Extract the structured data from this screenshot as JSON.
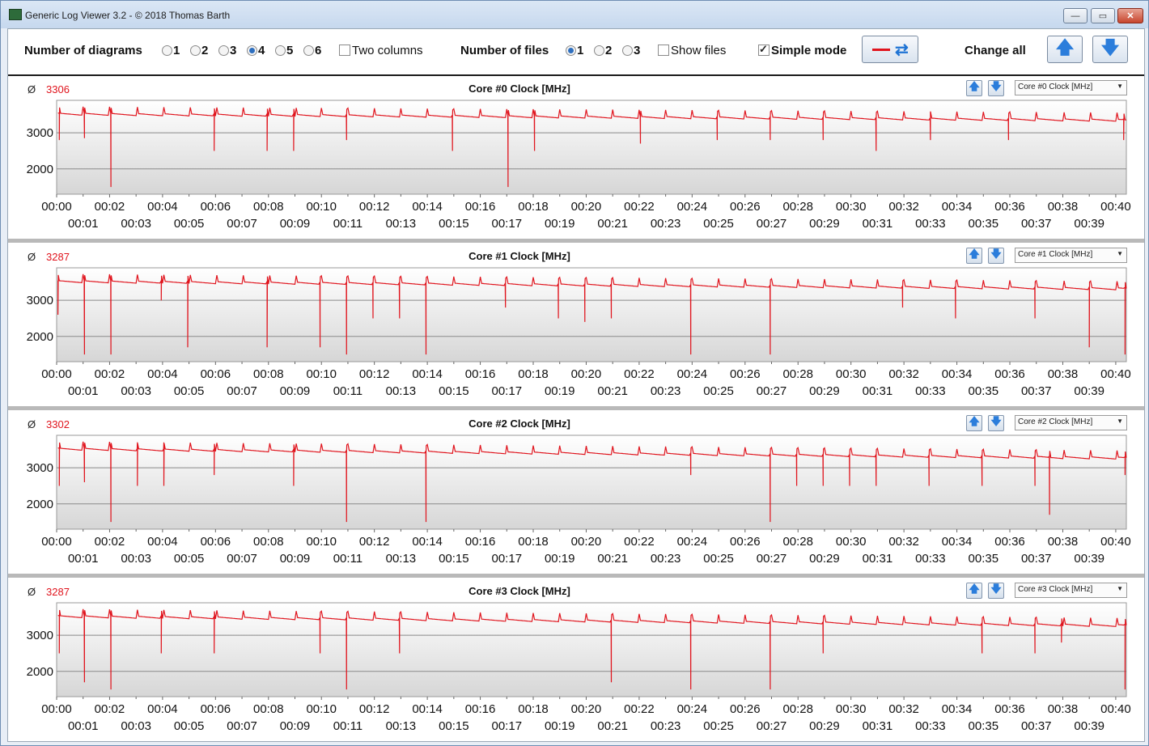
{
  "window": {
    "title": "Generic Log Viewer 3.2 - © 2018 Thomas Barth",
    "minimize_glyph": "—",
    "maximize_glyph": "▭",
    "close_glyph": "✕"
  },
  "toolbar": {
    "num_diagrams_label": "Number of diagrams",
    "diagram_options": [
      "1",
      "2",
      "3",
      "4",
      "5",
      "6"
    ],
    "diagrams_selected": "4",
    "two_columns_label": "Two columns",
    "two_columns_checked": false,
    "num_files_label": "Number of files",
    "file_options": [
      "1",
      "2",
      "3"
    ],
    "files_selected": "1",
    "show_files_label": "Show files",
    "show_files_checked": false,
    "simple_mode_label": "Simple mode",
    "simple_mode_checked": true,
    "change_all_label": "Change all",
    "up_icon": "up-arrow-icon",
    "down_icon": "down-arrow-icon"
  },
  "panels": [
    {
      "avg_symbol": "Ø",
      "avg": "3306",
      "title": "Core #0 Clock [MHz]",
      "combo": "Core #0 Clock [MHz]"
    },
    {
      "avg_symbol": "Ø",
      "avg": "3287",
      "title": "Core #1 Clock [MHz]",
      "combo": "Core #1 Clock [MHz]"
    },
    {
      "avg_symbol": "Ø",
      "avg": "3302",
      "title": "Core #2 Clock [MHz]",
      "combo": "Core #2 Clock [MHz]"
    },
    {
      "avg_symbol": "Ø",
      "avg": "3287",
      "title": "Core #3 Clock [MHz]",
      "combo": "Core #3 Clock [MHz]"
    }
  ],
  "colors": {
    "series": "#e0141d",
    "average": "#e0141d"
  },
  "chart_data": [
    {
      "type": "line",
      "title": "Core #0 Clock [MHz]",
      "y_ticks": [
        "3000",
        "2000"
      ],
      "x_ticks_row1": [
        "00:00",
        "00:02",
        "00:04",
        "00:06",
        "00:08",
        "00:10",
        "00:12",
        "00:14",
        "00:16",
        "00:18",
        "00:20",
        "00:22",
        "00:24",
        "00:26",
        "00:28",
        "00:30",
        "00:32",
        "00:34",
        "00:36",
        "00:38",
        "00:40"
      ],
      "x_ticks_row2": [
        "00:01",
        "00:03",
        "00:05",
        "00:07",
        "00:09",
        "00:11",
        "00:13",
        "00:15",
        "00:17",
        "00:19",
        "00:21",
        "00:23",
        "00:25",
        "00:27",
        "00:29",
        "00:31",
        "00:33",
        "00:35",
        "00:37",
        "00:39"
      ],
      "x_range_min": [
        0,
        40.4
      ],
      "ylim": [
        1300,
        3900
      ],
      "baseline_start": 3550,
      "baseline_end": 3380,
      "spike_period_min": 1.0,
      "dips": [
        [
          0.1,
          2800
        ],
        [
          1.05,
          2850
        ],
        [
          2.05,
          1500
        ],
        [
          5.95,
          2500
        ],
        [
          7.95,
          2500
        ],
        [
          8.95,
          2500
        ],
        [
          10.95,
          2800
        ],
        [
          14.95,
          2500
        ],
        [
          17.05,
          1500
        ],
        [
          18.05,
          2500
        ],
        [
          22.05,
          2700
        ],
        [
          24.95,
          2800
        ],
        [
          26.95,
          2800
        ],
        [
          28.95,
          2800
        ],
        [
          30.95,
          2500
        ],
        [
          33.0,
          2800
        ],
        [
          35.95,
          2800
        ],
        [
          40.3,
          2800
        ]
      ]
    },
    {
      "type": "line",
      "title": "Core #1 Clock [MHz]",
      "y_ticks": [
        "3000",
        "2000"
      ],
      "x_ticks_row1": [
        "00:00",
        "00:02",
        "00:04",
        "00:06",
        "00:08",
        "00:10",
        "00:12",
        "00:14",
        "00:16",
        "00:18",
        "00:20",
        "00:22",
        "00:24",
        "00:26",
        "00:28",
        "00:30",
        "00:32",
        "00:34",
        "00:36",
        "00:38",
        "00:40"
      ],
      "x_ticks_row2": [
        "00:01",
        "00:03",
        "00:05",
        "00:07",
        "00:09",
        "00:11",
        "00:13",
        "00:15",
        "00:17",
        "00:19",
        "00:21",
        "00:23",
        "00:25",
        "00:27",
        "00:29",
        "00:31",
        "00:33",
        "00:35",
        "00:37",
        "00:39"
      ],
      "x_range_min": [
        0,
        40.4
      ],
      "ylim": [
        1300,
        3900
      ],
      "baseline_start": 3550,
      "baseline_end": 3350,
      "spike_period_min": 1.0,
      "dips": [
        [
          0.05,
          2600
        ],
        [
          1.05,
          1500
        ],
        [
          2.05,
          1500
        ],
        [
          3.95,
          3000
        ],
        [
          4.95,
          1700
        ],
        [
          7.95,
          1700
        ],
        [
          9.95,
          1700
        ],
        [
          10.95,
          1500
        ],
        [
          11.95,
          2500
        ],
        [
          12.95,
          2500
        ],
        [
          13.95,
          1500
        ],
        [
          16.95,
          2800
        ],
        [
          18.95,
          2500
        ],
        [
          19.95,
          2400
        ],
        [
          20.95,
          2500
        ],
        [
          23.95,
          1500
        ],
        [
          26.95,
          1500
        ],
        [
          31.95,
          2800
        ],
        [
          33.95,
          2500
        ],
        [
          36.95,
          2500
        ],
        [
          39.0,
          1700
        ],
        [
          40.35,
          1500
        ]
      ]
    },
    {
      "type": "line",
      "title": "Core #2 Clock [MHz]",
      "y_ticks": [
        "3000",
        "2000"
      ],
      "x_ticks_row1": [
        "00:00",
        "00:02",
        "00:04",
        "00:06",
        "00:08",
        "00:10",
        "00:12",
        "00:14",
        "00:16",
        "00:18",
        "00:20",
        "00:22",
        "00:24",
        "00:26",
        "00:28",
        "00:30",
        "00:32",
        "00:34",
        "00:36",
        "00:38",
        "00:40"
      ],
      "x_ticks_row2": [
        "00:01",
        "00:03",
        "00:05",
        "00:07",
        "00:09",
        "00:11",
        "00:13",
        "00:15",
        "00:17",
        "00:19",
        "00:21",
        "00:23",
        "00:25",
        "00:27",
        "00:29",
        "00:31",
        "00:33",
        "00:35",
        "00:37",
        "00:39"
      ],
      "x_range_min": [
        0,
        40.4
      ],
      "ylim": [
        1300,
        3900
      ],
      "baseline_start": 3550,
      "baseline_end": 3300,
      "spike_period_min": 1.0,
      "dips": [
        [
          0.1,
          2500
        ],
        [
          1.05,
          2600
        ],
        [
          2.05,
          1500
        ],
        [
          3.05,
          2500
        ],
        [
          4.05,
          2500
        ],
        [
          5.95,
          2800
        ],
        [
          8.95,
          2500
        ],
        [
          10.95,
          1500
        ],
        [
          13.95,
          1500
        ],
        [
          23.95,
          2800
        ],
        [
          26.95,
          1500
        ],
        [
          27.95,
          2500
        ],
        [
          28.95,
          2500
        ],
        [
          29.95,
          2500
        ],
        [
          30.95,
          2500
        ],
        [
          32.95,
          2500
        ],
        [
          34.95,
          2500
        ],
        [
          36.95,
          2500
        ],
        [
          37.5,
          1700
        ],
        [
          40.35,
          2800
        ]
      ]
    },
    {
      "type": "line",
      "title": "Core #3 Clock [MHz]",
      "y_ticks": [
        "3000",
        "2000"
      ],
      "x_ticks_row1": [
        "00:00",
        "00:02",
        "00:04",
        "00:06",
        "00:08",
        "00:10",
        "00:12",
        "00:14",
        "00:16",
        "00:18",
        "00:20",
        "00:22",
        "00:24",
        "00:26",
        "00:28",
        "00:30",
        "00:32",
        "00:34",
        "00:36",
        "00:38",
        "00:40"
      ],
      "x_ticks_row2": [
        "00:01",
        "00:03",
        "00:05",
        "00:07",
        "00:09",
        "00:11",
        "00:13",
        "00:15",
        "00:17",
        "00:19",
        "00:21",
        "00:23",
        "00:25",
        "00:27",
        "00:29",
        "00:31",
        "00:33",
        "00:35",
        "00:37",
        "00:39"
      ],
      "x_range_min": [
        0,
        40.4
      ],
      "ylim": [
        1300,
        3900
      ],
      "baseline_start": 3550,
      "baseline_end": 3300,
      "spike_period_min": 1.0,
      "dips": [
        [
          0.1,
          2500
        ],
        [
          1.05,
          1700
        ],
        [
          2.05,
          1500
        ],
        [
          3.95,
          2500
        ],
        [
          5.95,
          2500
        ],
        [
          9.95,
          2500
        ],
        [
          10.95,
          1500
        ],
        [
          12.95,
          2500
        ],
        [
          20.95,
          1700
        ],
        [
          23.95,
          1500
        ],
        [
          26.95,
          1500
        ],
        [
          28.95,
          2500
        ],
        [
          34.95,
          2500
        ],
        [
          36.95,
          2500
        ],
        [
          37.95,
          2800
        ],
        [
          40.35,
          1500
        ]
      ]
    }
  ]
}
